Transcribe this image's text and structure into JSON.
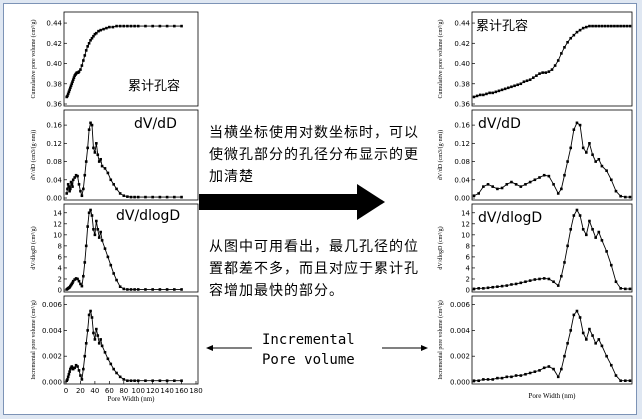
{
  "center": {
    "title": "当横坐标使用对数坐标时，可以使微孔部分的孔径分布显示的更加清楚",
    "note": "从图中可用看出，最几孔径的位置都差不多，而且对应于累计孔容增加最快的部分。",
    "incremental_line1": "Incremental",
    "incremental_line2": "Pore volume"
  },
  "colors": {
    "frame": "#7c93b6",
    "arrow": "#000000",
    "marker": "#000000"
  },
  "chart_data": [
    {
      "type": "line",
      "panel": "left-1",
      "annotation": "累计孔容",
      "ylabel": "Cumulative pore volume (cm³/g)",
      "yticks": [
        "0.36",
        "0.38",
        "0.40",
        "0.42",
        "0.44"
      ],
      "ylim": [
        0.36,
        0.445
      ],
      "xlim": [
        0,
        180
      ],
      "x": [
        1,
        2,
        3,
        4,
        5,
        6,
        7,
        8,
        9,
        10,
        11,
        12,
        13,
        14,
        15,
        16,
        17,
        18,
        20,
        22,
        24,
        26,
        28,
        30,
        32,
        34,
        36,
        38,
        40,
        42,
        45,
        48,
        52,
        56,
        60,
        65,
        70,
        75,
        80,
        85,
        90,
        95,
        100,
        110,
        120,
        130,
        140,
        150,
        160
      ],
      "y": [
        0.367,
        0.368,
        0.37,
        0.372,
        0.374,
        0.376,
        0.378,
        0.38,
        0.382,
        0.384,
        0.386,
        0.388,
        0.389,
        0.39,
        0.391,
        0.391,
        0.391,
        0.392,
        0.394,
        0.398,
        0.403,
        0.408,
        0.413,
        0.417,
        0.42,
        0.423,
        0.425,
        0.427,
        0.429,
        0.43,
        0.432,
        0.433,
        0.434,
        0.435,
        0.436,
        0.436,
        0.437,
        0.437,
        0.437,
        0.437,
        0.437,
        0.437,
        0.437,
        0.437,
        0.437,
        0.437,
        0.437,
        0.437,
        0.437
      ]
    },
    {
      "type": "line",
      "panel": "left-2",
      "annotation": "dV/dD",
      "ylabel": "dV/dD (cm3/(g·nm))",
      "yticks": [
        "0.00",
        "0.04",
        "0.08",
        "0.12",
        "0.16"
      ],
      "ylim": [
        0,
        0.18
      ],
      "xlim": [
        0,
        180
      ],
      "x": [
        1,
        2,
        3,
        4,
        5,
        6,
        7,
        8,
        9,
        10,
        12,
        14,
        16,
        18,
        20,
        22,
        24,
        26,
        28,
        30,
        32,
        34,
        36,
        38,
        40,
        42,
        44,
        46,
        48,
        50,
        54,
        58,
        62,
        66,
        70,
        75,
        80,
        85,
        90,
        95,
        100,
        110,
        120,
        130,
        140,
        150,
        160
      ],
      "y": [
        0.01,
        0.02,
        0.03,
        0.025,
        0.015,
        0.02,
        0.035,
        0.03,
        0.025,
        0.04,
        0.045,
        0.05,
        0.048,
        0.03,
        0.015,
        0.005,
        0.02,
        0.05,
        0.08,
        0.11,
        0.15,
        0.165,
        0.16,
        0.11,
        0.1,
        0.12,
        0.095,
        0.08,
        0.085,
        0.07,
        0.065,
        0.055,
        0.04,
        0.03,
        0.02,
        0.01,
        0.005,
        0.003,
        0.002,
        0.002,
        0.002,
        0.002,
        0.002,
        0.002,
        0.002,
        0.002,
        0.002
      ]
    },
    {
      "type": "line",
      "panel": "left-3",
      "annotation": "dV/dlogD",
      "ylabel": "dV/dlogD (cm³/g)",
      "yticks": [
        "0",
        "2",
        "4",
        "6",
        "8",
        "10",
        "12",
        "14"
      ],
      "ylim": [
        0,
        14.5
      ],
      "xlim": [
        0,
        180
      ],
      "x": [
        1,
        2,
        3,
        4,
        5,
        6,
        7,
        8,
        9,
        10,
        12,
        14,
        16,
        18,
        20,
        22,
        24,
        26,
        28,
        30,
        32,
        34,
        36,
        38,
        40,
        42,
        44,
        46,
        48,
        50,
        54,
        58,
        62,
        66,
        70,
        75,
        80,
        85,
        90,
        95,
        100,
        110,
        120,
        130,
        140,
        150,
        160
      ],
      "y": [
        0.1,
        0.2,
        0.3,
        0.4,
        0.5,
        0.7,
        0.9,
        1.1,
        1.3,
        1.6,
        1.9,
        2.1,
        2.0,
        1.6,
        1.1,
        0.7,
        2.5,
        5.0,
        8.0,
        11.5,
        14.0,
        14.5,
        13.5,
        11.0,
        10.0,
        12.5,
        11.0,
        9.5,
        10.5,
        9.0,
        7.5,
        6.0,
        4.5,
        3.0,
        1.8,
        0.6,
        0.2,
        0.1,
        0.1,
        0.1,
        0.1,
        0.1,
        0.1,
        0.1,
        0.1,
        0.1,
        0.1
      ]
    },
    {
      "type": "line",
      "panel": "left-4",
      "ylabel": "Incremental pore volume (cm³/g)",
      "xlabel": "Pore Width (nm)",
      "yticks": [
        "0.000",
        "0.002",
        "0.004",
        "0.006"
      ],
      "xticks": [
        "0",
        "20",
        "40",
        "60",
        "80",
        "100",
        "120",
        "140",
        "160",
        "180"
      ],
      "ylim": [
        0,
        0.0062
      ],
      "xlim": [
        0,
        180
      ],
      "x": [
        1,
        2,
        3,
        4,
        5,
        6,
        7,
        8,
        9,
        10,
        12,
        14,
        16,
        18,
        20,
        22,
        24,
        26,
        28,
        30,
        32,
        34,
        36,
        38,
        40,
        42,
        44,
        46,
        48,
        50,
        54,
        58,
        62,
        66,
        70,
        75,
        80,
        85,
        90,
        95,
        100,
        110,
        120,
        130,
        140,
        150,
        160
      ],
      "y": [
        0.0001,
        0.0002,
        0.0004,
        0.0006,
        0.0008,
        0.001,
        0.0011,
        0.0012,
        0.0011,
        0.001,
        0.0011,
        0.0013,
        0.0012,
        0.0009,
        0.0005,
        0.0002,
        0.001,
        0.002,
        0.003,
        0.004,
        0.0052,
        0.0055,
        0.005,
        0.0038,
        0.0033,
        0.0041,
        0.0036,
        0.003,
        0.0033,
        0.0028,
        0.0023,
        0.0018,
        0.0014,
        0.001,
        0.0007,
        0.0004,
        0.0002,
        0.0001,
        0.0001,
        0.0001,
        0.0001,
        0.0001,
        0.0001,
        0.0001,
        0.0001,
        0.0001,
        0.0001
      ]
    },
    {
      "type": "line",
      "panel": "right-1",
      "annotation": "累计孔容",
      "ylabel": "Cumulative pore volume (cm³/g)",
      "yticks": [
        "0.36",
        "0.38",
        "0.40",
        "0.42",
        "0.44"
      ],
      "ylim": [
        0.36,
        0.445
      ],
      "x": [
        0.0,
        0.02,
        0.04,
        0.06,
        0.08,
        0.1,
        0.12,
        0.14,
        0.16,
        0.18,
        0.2,
        0.22,
        0.24,
        0.26,
        0.28,
        0.3,
        0.32,
        0.34,
        0.36,
        0.38,
        0.4,
        0.42,
        0.44,
        0.46,
        0.48,
        0.5,
        0.52,
        0.54,
        0.56,
        0.58,
        0.6,
        0.62,
        0.64,
        0.66,
        0.68,
        0.7,
        0.72,
        0.74,
        0.76,
        0.78,
        0.8,
        0.82,
        0.84,
        0.86,
        0.88,
        0.9,
        0.92,
        0.94,
        0.96,
        0.98,
        1.0
      ],
      "y": [
        0.367,
        0.368,
        0.369,
        0.369,
        0.37,
        0.371,
        0.371,
        0.372,
        0.373,
        0.374,
        0.375,
        0.376,
        0.377,
        0.378,
        0.379,
        0.38,
        0.382,
        0.383,
        0.384,
        0.386,
        0.388,
        0.39,
        0.391,
        0.391,
        0.392,
        0.394,
        0.398,
        0.403,
        0.41,
        0.416,
        0.421,
        0.425,
        0.428,
        0.431,
        0.433,
        0.435,
        0.436,
        0.437,
        0.437,
        0.437,
        0.437,
        0.437,
        0.437,
        0.437,
        0.437,
        0.437,
        0.437,
        0.437,
        0.437,
        0.437,
        0.437
      ]
    },
    {
      "type": "line",
      "panel": "right-2",
      "annotation": "dV/dD",
      "ylabel": "dV/dD (cm3/(g·nm))",
      "yticks": [
        "0.00",
        "0.04",
        "0.08",
        "0.12",
        "0.16"
      ],
      "ylim": [
        0,
        0.18
      ],
      "x": [
        0.0,
        0.03,
        0.06,
        0.09,
        0.12,
        0.15,
        0.18,
        0.21,
        0.24,
        0.27,
        0.3,
        0.33,
        0.36,
        0.39,
        0.42,
        0.45,
        0.48,
        0.51,
        0.54,
        0.56,
        0.58,
        0.6,
        0.62,
        0.64,
        0.66,
        0.68,
        0.7,
        0.72,
        0.74,
        0.76,
        0.78,
        0.8,
        0.82,
        0.85,
        0.88,
        0.91,
        0.94,
        0.97,
        1.0
      ],
      "y": [
        0.005,
        0.01,
        0.025,
        0.03,
        0.025,
        0.02,
        0.022,
        0.03,
        0.035,
        0.03,
        0.025,
        0.03,
        0.035,
        0.04,
        0.045,
        0.05,
        0.048,
        0.03,
        0.01,
        0.02,
        0.05,
        0.08,
        0.11,
        0.15,
        0.165,
        0.16,
        0.11,
        0.1,
        0.12,
        0.095,
        0.08,
        0.085,
        0.07,
        0.06,
        0.04,
        0.015,
        0.004,
        0.002,
        0.002
      ]
    },
    {
      "type": "line",
      "panel": "right-3",
      "annotation": "dV/dlogD",
      "ylabel": "dV/dlogD (cm³/g)",
      "yticks": [
        "0",
        "2",
        "4",
        "6",
        "8",
        "10",
        "12",
        "14"
      ],
      "ylim": [
        0,
        14.5
      ],
      "x": [
        0.0,
        0.03,
        0.06,
        0.09,
        0.12,
        0.15,
        0.18,
        0.21,
        0.24,
        0.27,
        0.3,
        0.33,
        0.36,
        0.39,
        0.42,
        0.45,
        0.48,
        0.51,
        0.54,
        0.56,
        0.58,
        0.6,
        0.62,
        0.64,
        0.66,
        0.68,
        0.7,
        0.72,
        0.74,
        0.76,
        0.78,
        0.8,
        0.82,
        0.85,
        0.88,
        0.91,
        0.94,
        0.97,
        1.0
      ],
      "y": [
        0.2,
        0.3,
        0.3,
        0.4,
        0.5,
        0.6,
        0.7,
        0.8,
        1.0,
        1.1,
        1.3,
        1.5,
        1.7,
        1.9,
        2.0,
        2.1,
        2.0,
        1.5,
        0.8,
        2.5,
        5.0,
        8.0,
        11.0,
        13.5,
        14.5,
        13.5,
        11.0,
        10.0,
        12.5,
        11.0,
        9.5,
        10.5,
        9.0,
        7.0,
        4.5,
        1.5,
        0.3,
        0.2,
        0.2
      ]
    },
    {
      "type": "line",
      "panel": "right-4",
      "ylabel": "Incremental pore volume (cm³/g)",
      "xlabel": "Pore Width (nm)",
      "yticks": [
        "0.000",
        "0.002",
        "0.004",
        "0.006"
      ],
      "ylim": [
        0,
        0.0062
      ],
      "x": [
        0.0,
        0.03,
        0.06,
        0.09,
        0.12,
        0.15,
        0.18,
        0.21,
        0.24,
        0.27,
        0.3,
        0.33,
        0.36,
        0.39,
        0.42,
        0.45,
        0.48,
        0.51,
        0.54,
        0.56,
        0.58,
        0.6,
        0.62,
        0.64,
        0.66,
        0.68,
        0.7,
        0.72,
        0.74,
        0.76,
        0.78,
        0.8,
        0.82,
        0.85,
        0.88,
        0.91,
        0.94,
        0.97,
        1.0
      ],
      "y": [
        0.0001,
        0.0001,
        0.0002,
        0.0002,
        0.0002,
        0.0003,
        0.0003,
        0.0004,
        0.0004,
        0.0005,
        0.0005,
        0.0006,
        0.0007,
        0.0008,
        0.0009,
        0.0011,
        0.0012,
        0.001,
        0.0004,
        0.001,
        0.002,
        0.003,
        0.004,
        0.0052,
        0.0055,
        0.005,
        0.0038,
        0.0033,
        0.0041,
        0.0036,
        0.003,
        0.0033,
        0.0028,
        0.002,
        0.0013,
        0.0005,
        0.0001,
        0.0001,
        0.0001
      ]
    }
  ]
}
